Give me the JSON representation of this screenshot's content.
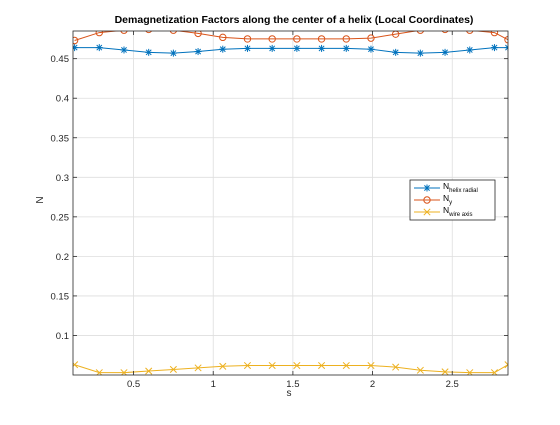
{
  "chart_data": {
    "type": "line",
    "title": "Demagnetization Factors along the center of a helix (Local Coordinates)",
    "xlabel": "s",
    "ylabel": "N",
    "xlim": [
      0.12,
      2.85
    ],
    "ylim": [
      0.05,
      0.485
    ],
    "xticks": [
      {
        "value": 0.5,
        "label": "0.5"
      },
      {
        "value": 1,
        "label": "1"
      },
      {
        "value": 1.5,
        "label": "1.5"
      },
      {
        "value": 2,
        "label": "2"
      },
      {
        "value": 2.5,
        "label": "2.5"
      }
    ],
    "yticks": [
      {
        "value": 0.1,
        "label": "0.1"
      },
      {
        "value": 0.15,
        "label": "0.15"
      },
      {
        "value": 0.2,
        "label": "0.2"
      },
      {
        "value": 0.25,
        "label": "0.25"
      },
      {
        "value": 0.3,
        "label": "0.3"
      },
      {
        "value": 0.35,
        "label": "0.35"
      },
      {
        "value": 0.4,
        "label": "0.4"
      },
      {
        "value": 0.45,
        "label": "0.45"
      }
    ],
    "grid": true,
    "legend_position": "right-middle",
    "x": [
      0.13,
      0.285,
      0.44,
      0.595,
      0.75,
      0.905,
      1.06,
      1.215,
      1.37,
      1.525,
      1.68,
      1.835,
      1.99,
      2.145,
      2.3,
      2.455,
      2.61,
      2.765,
      2.85
    ],
    "series": [
      {
        "name_main": "N",
        "name_sub": "helix radial",
        "color": "#0072BD",
        "marker": "asterisk",
        "values": [
          0.464,
          0.464,
          0.461,
          0.458,
          0.457,
          0.459,
          0.462,
          0.463,
          0.463,
          0.463,
          0.463,
          0.463,
          0.462,
          0.458,
          0.457,
          0.458,
          0.461,
          0.464,
          0.464
        ]
      },
      {
        "name_main": "N",
        "name_sub": "y",
        "color": "#D95319",
        "marker": "circle",
        "values": [
          0.473,
          0.483,
          0.486,
          0.487,
          0.486,
          0.482,
          0.477,
          0.475,
          0.475,
          0.475,
          0.475,
          0.475,
          0.476,
          0.481,
          0.486,
          0.487,
          0.486,
          0.483,
          0.474
        ]
      },
      {
        "name_main": "N",
        "name_sub": "wire axis",
        "color": "#EDB120",
        "marker": "x",
        "values": [
          0.063,
          0.053,
          0.053,
          0.055,
          0.057,
          0.059,
          0.061,
          0.062,
          0.062,
          0.062,
          0.062,
          0.062,
          0.062,
          0.06,
          0.056,
          0.054,
          0.053,
          0.053,
          0.063
        ]
      }
    ]
  }
}
